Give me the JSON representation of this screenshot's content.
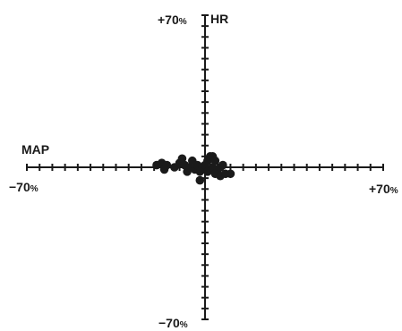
{
  "chart_data": {
    "type": "scatter",
    "title": "",
    "xlabel": "MAP",
    "ylabel": "HR",
    "x_range": [
      -70,
      70
    ],
    "y_range": [
      -70,
      70
    ],
    "x_tick_step": 5,
    "y_tick_step": 5,
    "tick_labels": {
      "x_min": "−70",
      "x_max": "+70",
      "y_min": "−70",
      "y_max": "+70",
      "unit": "%"
    },
    "grid": false,
    "legend": "none",
    "color": "#1a1a1a",
    "points": [
      {
        "x": -19,
        "y": 1
      },
      {
        "x": -17,
        "y": 2
      },
      {
        "x": -15,
        "y": 1
      },
      {
        "x": -16,
        "y": -1
      },
      {
        "x": -12,
        "y": 0
      },
      {
        "x": -10,
        "y": 2
      },
      {
        "x": -9,
        "y": 4
      },
      {
        "x": -8,
        "y": 1
      },
      {
        "x": -7,
        "y": -2
      },
      {
        "x": -6,
        "y": 0
      },
      {
        "x": -5,
        "y": 3
      },
      {
        "x": -4,
        "y": -1
      },
      {
        "x": -3,
        "y": 1
      },
      {
        "x": -2,
        "y": -2
      },
      {
        "x": -1,
        "y": 0
      },
      {
        "x": -2,
        "y": -6
      },
      {
        "x": 0,
        "y": 1
      },
      {
        "x": 1,
        "y": -2
      },
      {
        "x": 1,
        "y": 3
      },
      {
        "x": 2,
        "y": 5
      },
      {
        "x": 3,
        "y": 0
      },
      {
        "x": 4,
        "y": -3
      },
      {
        "x": 4,
        "y": 3
      },
      {
        "x": 5,
        "y": -1
      },
      {
        "x": 6,
        "y": 0
      },
      {
        "x": 6,
        "y": -4
      },
      {
        "x": 7,
        "y": 1
      },
      {
        "x": 8,
        "y": -3
      },
      {
        "x": 10,
        "y": -3
      },
      {
        "x": 3,
        "y": 5
      }
    ]
  }
}
